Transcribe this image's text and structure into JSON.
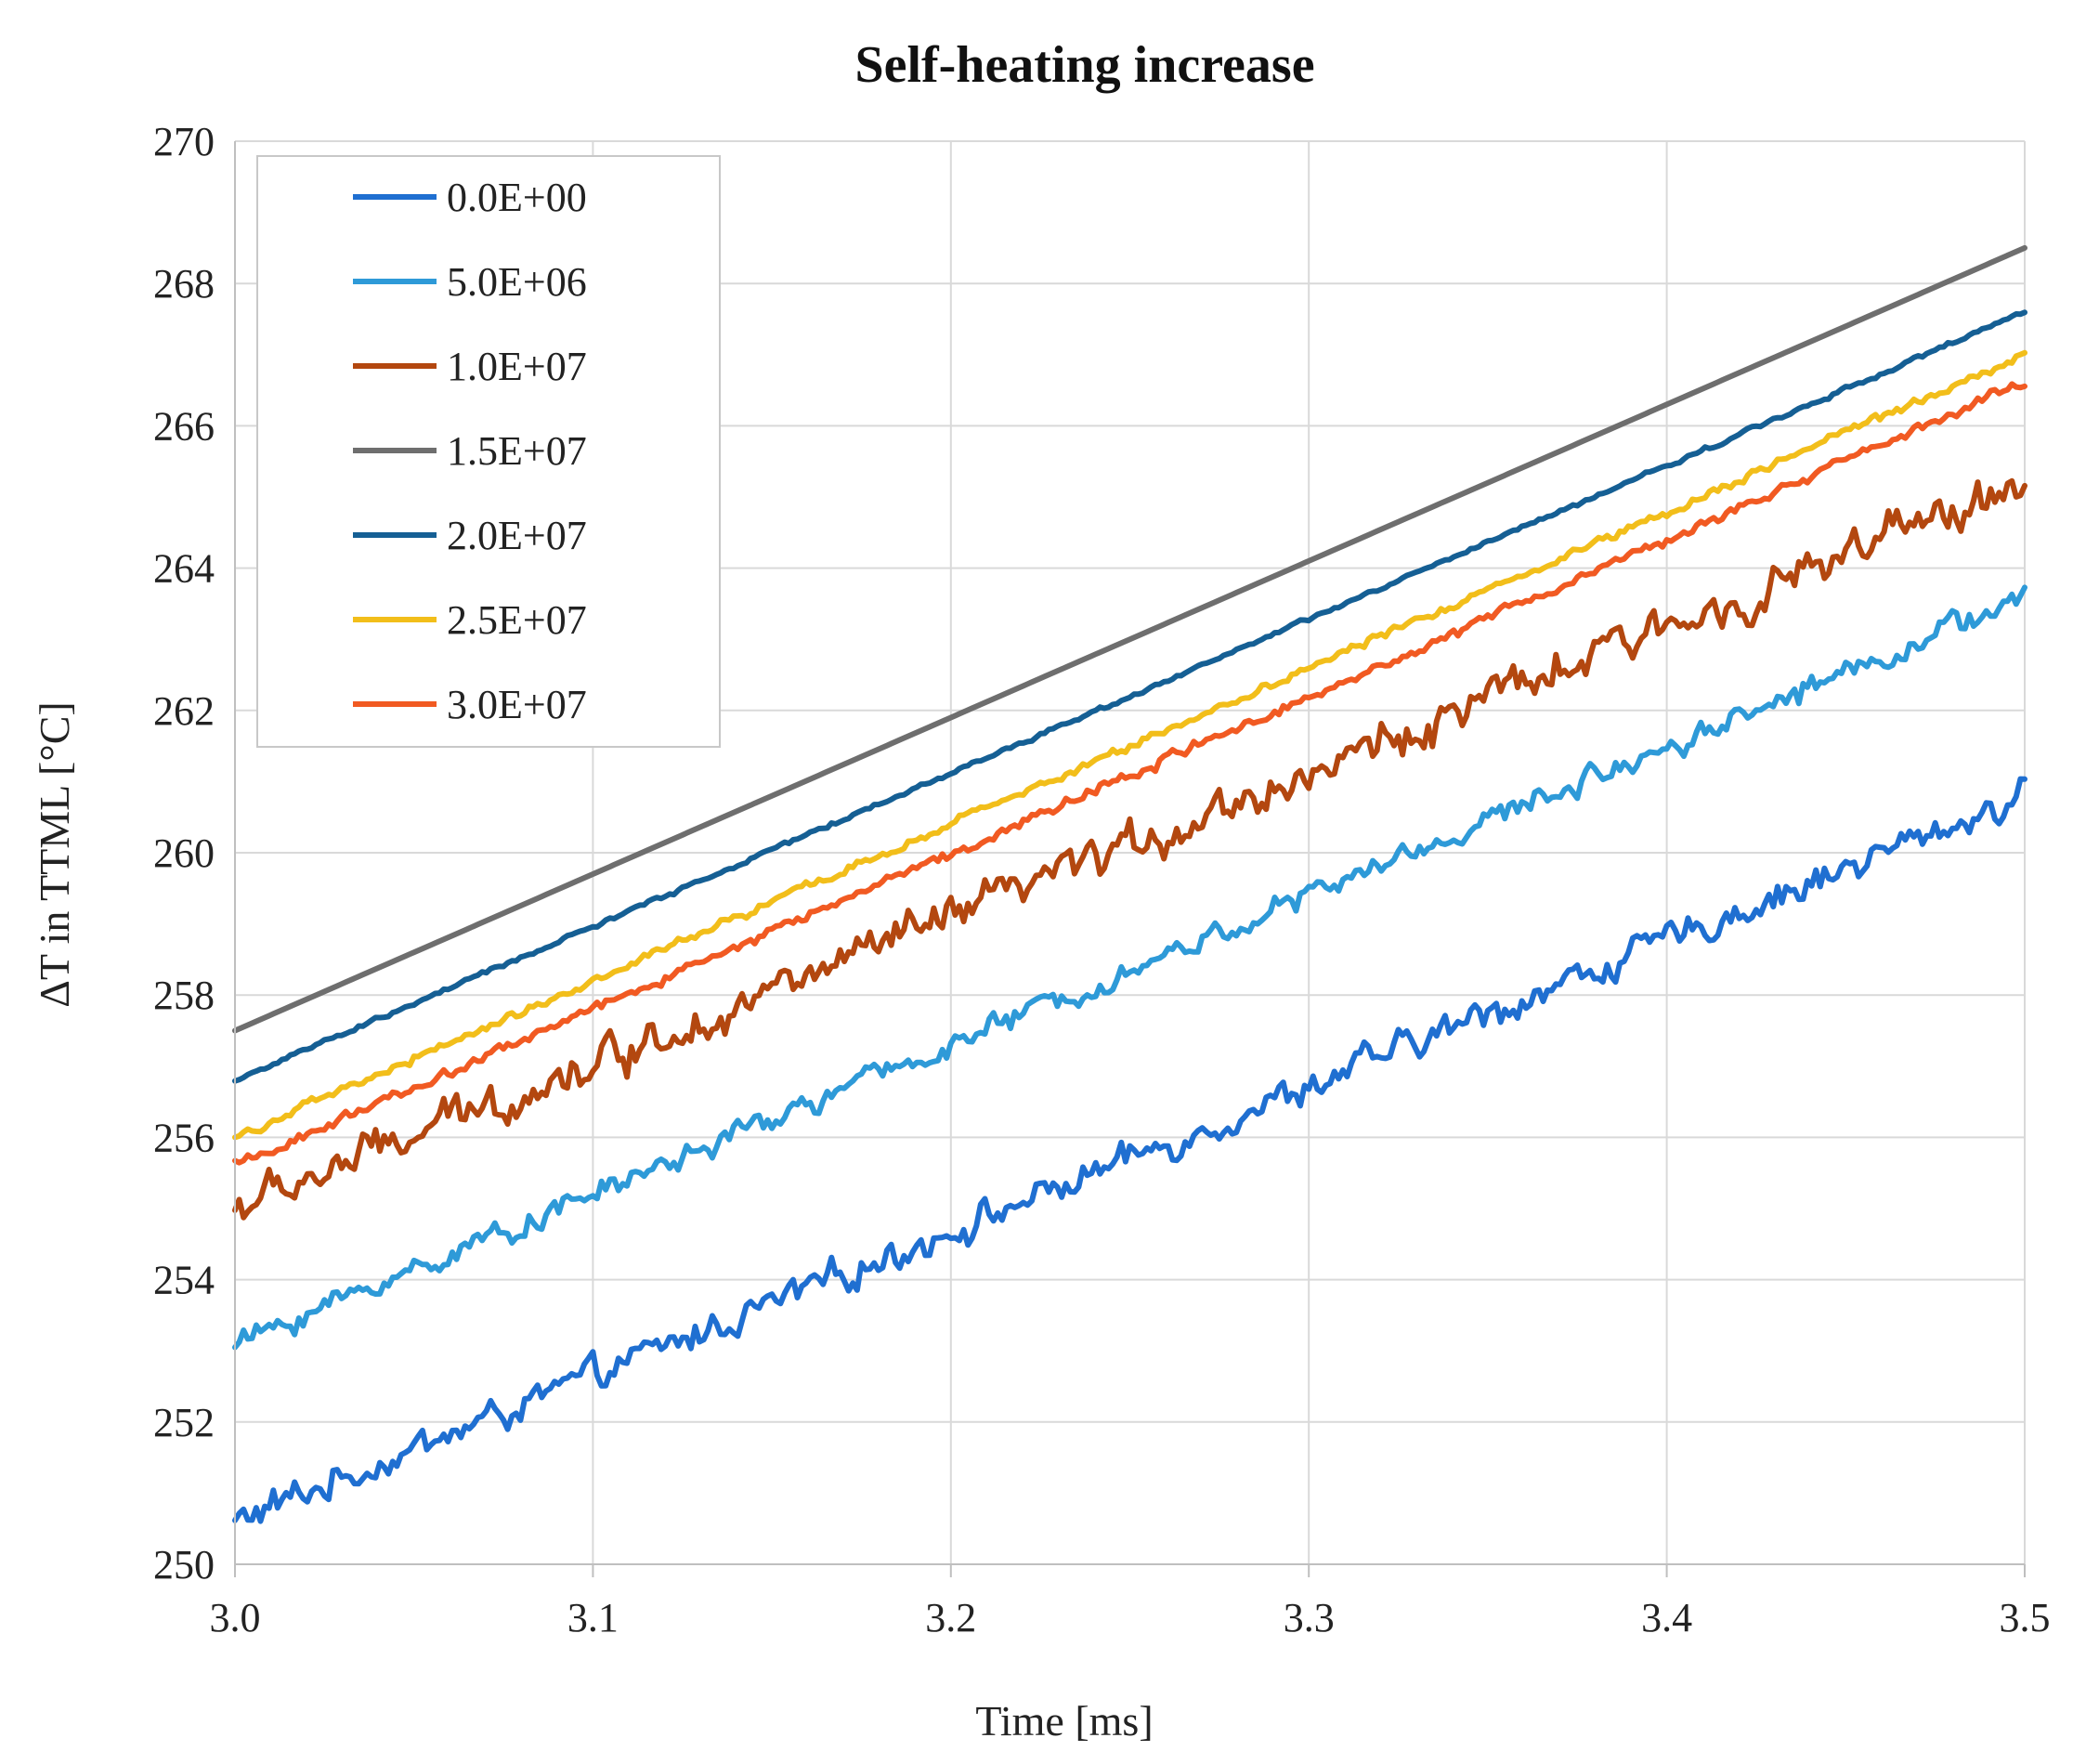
{
  "chart_data": {
    "type": "line",
    "title": "Self-heating increase",
    "xlabel": "Time [ms]",
    "ylabel": "ΔT in TTML [°C]",
    "xlim": [
      3.0,
      3.5
    ],
    "ylim": [
      250,
      270
    ],
    "xticks": [
      "3.0",
      "3.1",
      "3.2",
      "3.3",
      "3.4",
      "3.5"
    ],
    "yticks": [
      "250",
      "252",
      "254",
      "256",
      "258",
      "260",
      "262",
      "264",
      "266",
      "268",
      "270"
    ],
    "grid": true,
    "legend_position": "top-left",
    "series": [
      {
        "name": "0.0E+00",
        "color": "#1f6fd1",
        "x": [
          3.0,
          3.5
        ],
        "y": [
          250.6,
          260.8
        ],
        "noise": 0.22
      },
      {
        "name": "5.0E+06",
        "color": "#2e9ad8",
        "x": [
          3.0,
          3.5
        ],
        "y": [
          253.1,
          263.6
        ],
        "noise": 0.16
      },
      {
        "name": "1.0E+07",
        "color": "#b3470f",
        "x": [
          3.0,
          3.5
        ],
        "y": [
          255.0,
          265.2
        ],
        "noise": 0.28
      },
      {
        "name": "1.5E+07",
        "color": "#6e6e6e",
        "x": [
          3.0,
          3.5
        ],
        "y": [
          257.5,
          268.5
        ],
        "noise": 0.0
      },
      {
        "name": "2.0E+07",
        "color": "#155f94",
        "x": [
          3.0,
          3.5
        ],
        "y": [
          256.8,
          267.6
        ],
        "noise": 0.03
      },
      {
        "name": "2.5E+07",
        "color": "#f2be1a",
        "x": [
          3.0,
          3.5
        ],
        "y": [
          256.0,
          267.0
        ],
        "noise": 0.06
      },
      {
        "name": "3.0E+07",
        "color": "#f15a22",
        "x": [
          3.0,
          3.5
        ],
        "y": [
          255.6,
          266.6
        ],
        "noise": 0.07
      }
    ]
  }
}
